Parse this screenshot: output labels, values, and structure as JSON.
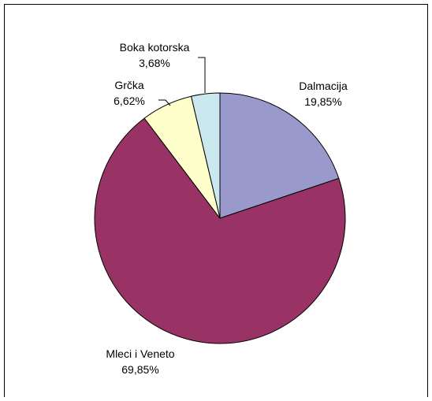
{
  "chart_data": {
    "type": "pie",
    "slices": [
      {
        "label": "Dalmacija",
        "value": 19.85,
        "value_label": "19,85%",
        "color": "#9999cc"
      },
      {
        "label": "Mleci i Veneto",
        "value": 69.85,
        "value_label": "69,85%",
        "color": "#993366"
      },
      {
        "label": "Grčka",
        "value": 6.62,
        "value_label": "6,62%",
        "color": "#ffffcc"
      },
      {
        "label": "Boka kotorska",
        "value": 3.68,
        "value_label": "3,68%",
        "color": "#cce8ef"
      }
    ],
    "start_angle": "12 o'clock",
    "direction": "clockwise",
    "slice_border_color": "#000000"
  }
}
